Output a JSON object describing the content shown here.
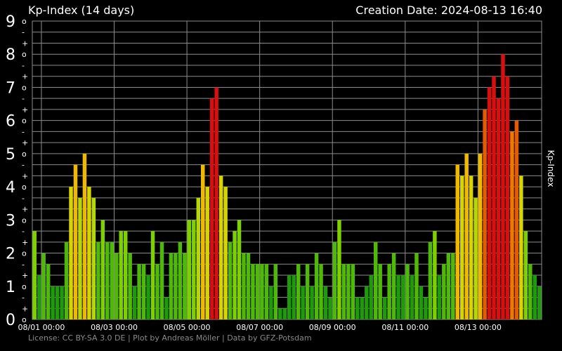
{
  "header": {
    "title": "Kp-Index (14 days)",
    "creation_label": "Creation Date:",
    "creation_date": "2024-08-13 16:40"
  },
  "footer": {
    "text": "License: CC BY-SA 3.0 DE | Plot by Andreas Möller | Data by GFZ-Potsdam"
  },
  "colors": {
    "background": "#000000",
    "grid": "#8c8c8c",
    "quiet": "#22a20a",
    "moderate": "#7fd000",
    "active": "#e6c800",
    "storm_minor": "#ef8a00",
    "storm_strong": "#dc0e0e",
    "text": "#ffffff",
    "footer_text": "#8a8a8a"
  },
  "chart_data": {
    "type": "bar",
    "title": "Kp-Index (14 days)",
    "ylabel": "Kp-Index",
    "xlabel": "",
    "ylim": [
      0,
      9
    ],
    "grid": true,
    "interval_hours": 3,
    "y_major_ticks": [
      "0",
      "1",
      "2",
      "3",
      "4",
      "5",
      "6",
      "7",
      "8",
      "9"
    ],
    "y_minor_marks": [
      "+",
      "o",
      "-"
    ],
    "x_tick_labels": [
      "08/01 00:00",
      "08/03 00:00",
      "08/05 00:00",
      "08/07 00:00",
      "08/09 00:00",
      "08/11 00:00",
      "08/13 00:00"
    ],
    "first_bar_start": "2024-07-30 18:00",
    "values": [
      2.667,
      1.333,
      2.0,
      1.667,
      1.0,
      1.0,
      1.0,
      2.333,
      4.0,
      4.667,
      3.667,
      5.0,
      4.0,
      3.667,
      2.333,
      3.0,
      2.333,
      2.333,
      2.0,
      2.667,
      2.667,
      2.0,
      1.0,
      1.667,
      1.667,
      1.333,
      2.667,
      1.667,
      2.333,
      0.667,
      2.0,
      2.0,
      2.333,
      2.0,
      3.0,
      3.0,
      3.667,
      4.667,
      4.0,
      6.667,
      7.0,
      4.333,
      4.0,
      2.333,
      2.667,
      3.0,
      2.0,
      2.0,
      1.667,
      1.667,
      1.667,
      1.667,
      1.0,
      1.667,
      0.333,
      0.333,
      1.333,
      1.333,
      1.667,
      1.0,
      1.667,
      1.0,
      2.0,
      1.667,
      1.0,
      0.667,
      2.333,
      3.0,
      1.667,
      1.667,
      1.667,
      0.667,
      0.667,
      1.0,
      1.333,
      2.333,
      1.667,
      0.667,
      1.667,
      2.0,
      1.333,
      1.333,
      1.667,
      1.333,
      2.0,
      1.0,
      0.667,
      2.333,
      2.667,
      1.333,
      1.667,
      2.0,
      2.0,
      4.667,
      4.333,
      5.0,
      4.333,
      3.667,
      5.0,
      6.333,
      7.0,
      7.333,
      6.667,
      8.0,
      7.333,
      5.667,
      6.0,
      4.333,
      2.667,
      1.667,
      1.333,
      1.0
    ]
  }
}
